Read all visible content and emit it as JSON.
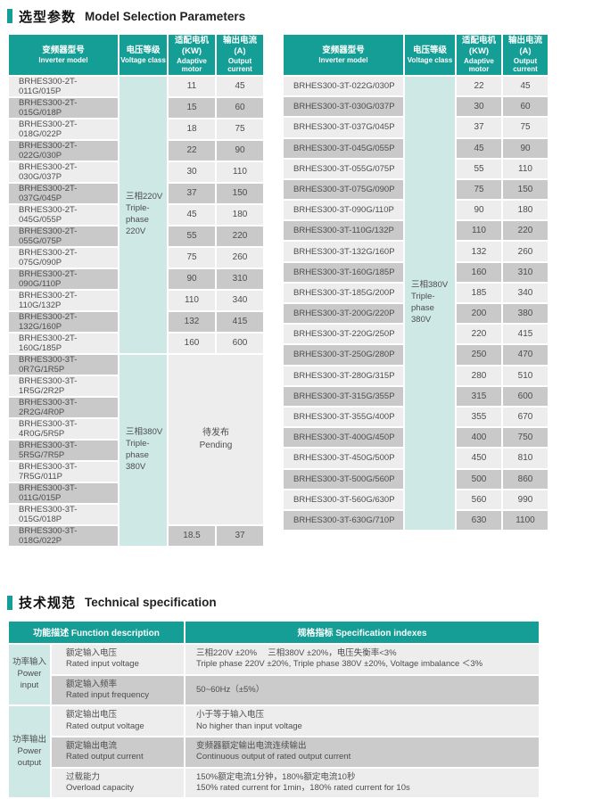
{
  "sections": {
    "model_selection": {
      "title_cn": "选型参数",
      "title_en": "Model Selection Parameters"
    },
    "technical_spec": {
      "title_cn": "技术规范",
      "title_en": "Technical specification"
    }
  },
  "colors": {
    "header_teal": "#149e96",
    "voltage_cell_teal": "#cde8e5",
    "row_light": "#ededed",
    "row_dark": "#c9c9c9"
  },
  "model_tables": {
    "columns": [
      {
        "cn": "变频器型号",
        "en": "Inverter model"
      },
      {
        "cn": "电压等级",
        "en": "Voltage class"
      },
      {
        "cn": "适配电机(KW)",
        "en": "Adaptive motor"
      },
      {
        "cn": "输出电流(A)",
        "en": "Output current"
      }
    ],
    "left": {
      "voltage_groups": [
        {
          "lines": [
            "三相220V",
            "Triple-",
            "phase 220V"
          ],
          "rows": 13
        },
        {
          "lines": [
            "三相380V",
            "Triple-",
            "phase 380V"
          ],
          "rows": 9
        }
      ],
      "pending": {
        "cn": "待发布",
        "en": "Pending"
      },
      "rows": [
        {
          "model": "BRHES300-2T-011G/015P",
          "motor": "11",
          "current": "45"
        },
        {
          "model": "BRHES300-2T-015G/018P",
          "motor": "15",
          "current": "60"
        },
        {
          "model": "BRHES300-2T-018G/022P",
          "motor": "18",
          "current": "75"
        },
        {
          "model": "BRHES300-2T-022G/030P",
          "motor": "22",
          "current": "90"
        },
        {
          "model": "BRHES300-2T-030G/037P",
          "motor": "30",
          "current": "110"
        },
        {
          "model": "BRHES300-2T-037G/045P",
          "motor": "37",
          "current": "150"
        },
        {
          "model": "BRHES300-2T-045G/055P",
          "motor": "45",
          "current": "180"
        },
        {
          "model": "BRHES300-2T-055G/075P",
          "motor": "55",
          "current": "220"
        },
        {
          "model": "BRHES300-2T-075G/090P",
          "motor": "75",
          "current": "260"
        },
        {
          "model": "BRHES300-2T-090G/110P",
          "motor": "90",
          "current": "310"
        },
        {
          "model": "BRHES300-2T-110G/132P",
          "motor": "110",
          "current": "340"
        },
        {
          "model": "BRHES300-2T-132G/160P",
          "motor": "132",
          "current": "415"
        },
        {
          "model": "BRHES300-2T-160G/185P",
          "motor": "160",
          "current": "600"
        },
        {
          "model": "BRHES300-3T-0R7G/1R5P",
          "motor": null,
          "current": null
        },
        {
          "model": "BRHES300-3T-1R5G/2R2P",
          "motor": null,
          "current": null
        },
        {
          "model": "BRHES300-3T-2R2G/4R0P",
          "motor": null,
          "current": null
        },
        {
          "model": "BRHES300-3T-4R0G/5R5P",
          "motor": null,
          "current": null
        },
        {
          "model": "BRHES300-3T-5R5G/7R5P",
          "motor": null,
          "current": null
        },
        {
          "model": "BRHES300-3T-7R5G/011P",
          "motor": null,
          "current": null
        },
        {
          "model": "BRHES300-3T-011G/015P",
          "motor": null,
          "current": null
        },
        {
          "model": "BRHES300-3T-015G/018P",
          "motor": null,
          "current": null
        },
        {
          "model": "BRHES300-3T-018G/022P",
          "motor": "18.5",
          "current": "37"
        }
      ]
    },
    "right": {
      "voltage_groups": [
        {
          "lines": [
            "三相380V",
            "Triple-",
            "phase 380V"
          ],
          "rows": 22
        }
      ],
      "pending": null,
      "rows": [
        {
          "model": "BRHES300-3T-022G/030P",
          "motor": "22",
          "current": "45"
        },
        {
          "model": "BRHES300-3T-030G/037P",
          "motor": "30",
          "current": "60"
        },
        {
          "model": "BRHES300-3T-037G/045P",
          "motor": "37",
          "current": "75"
        },
        {
          "model": "BRHES300-3T-045G/055P",
          "motor": "45",
          "current": "90"
        },
        {
          "model": "BRHES300-3T-055G/075P",
          "motor": "55",
          "current": "110"
        },
        {
          "model": "BRHES300-3T-075G/090P",
          "motor": "75",
          "current": "150"
        },
        {
          "model": "BRHES300-3T-090G/110P",
          "motor": "90",
          "current": "180"
        },
        {
          "model": "BRHES300-3T-110G/132P",
          "motor": "110",
          "current": "220"
        },
        {
          "model": "BRHES300-3T-132G/160P",
          "motor": "132",
          "current": "260"
        },
        {
          "model": "BRHES300-3T-160G/185P",
          "motor": "160",
          "current": "310"
        },
        {
          "model": "BRHES300-3T-185G/200P",
          "motor": "185",
          "current": "340"
        },
        {
          "model": "BRHES300-3T-200G/220P",
          "motor": "200",
          "current": "380"
        },
        {
          "model": "BRHES300-3T-220G/250P",
          "motor": "220",
          "current": "415"
        },
        {
          "model": "BRHES300-3T-250G/280P",
          "motor": "250",
          "current": "470"
        },
        {
          "model": "BRHES300-3T-280G/315P",
          "motor": "280",
          "current": "510"
        },
        {
          "model": "BRHES300-3T-315G/355P",
          "motor": "315",
          "current": "600"
        },
        {
          "model": "BRHES300-3T-355G/400P",
          "motor": "355",
          "current": "670"
        },
        {
          "model": "BRHES300-3T-400G/450P",
          "motor": "400",
          "current": "750"
        },
        {
          "model": "BRHES300-3T-450G/500P",
          "motor": "450",
          "current": "810"
        },
        {
          "model": "BRHES300-3T-500G/560P",
          "motor": "500",
          "current": "860"
        },
        {
          "model": "BRHES300-3T-560G/630P",
          "motor": "560",
          "current": "990"
        },
        {
          "model": "BRHES300-3T-630G/710P",
          "motor": "630",
          "current": "1100"
        }
      ]
    }
  },
  "spec_table": {
    "header": {
      "left": "功能描述  Function description",
      "right": "规格指标  Specification indexes"
    },
    "groups": [
      {
        "cn": "功率输入",
        "en": "Power input",
        "rows": [
          {
            "desc_cn": "额定输入电压",
            "desc_en": "Rated input voltage",
            "value_lines": [
              "三相220V ±20%　 三相380V ±20%，电压失衡率<3%",
              "Triple phase 220V ±20%, Triple phase 380V ±20%, Voltage imbalance ＜3%"
            ]
          },
          {
            "desc_cn": "额定输入频率",
            "desc_en": "Rated input frequency",
            "value_lines": [
              "50~60Hz（±5%）"
            ]
          }
        ]
      },
      {
        "cn": "功率输出",
        "en": "Power output",
        "rows": [
          {
            "desc_cn": "额定输出电压",
            "desc_en": "Rated output voltage",
            "value_lines": [
              "小于等于输入电压",
              "No higher than input voltage"
            ]
          },
          {
            "desc_cn": "额定输出电流",
            "desc_en": "Rated output current",
            "value_lines": [
              "变频器额定输出电流连续输出",
              "Continuous output of rated output current"
            ]
          },
          {
            "desc_cn": "过载能力",
            "desc_en": "Overload capacity",
            "value_lines": [
              "150%额定电流1分钟，180%额定电流10秒",
              "150% rated current for 1min，180% rated current for 10s"
            ]
          }
        ]
      }
    ]
  }
}
